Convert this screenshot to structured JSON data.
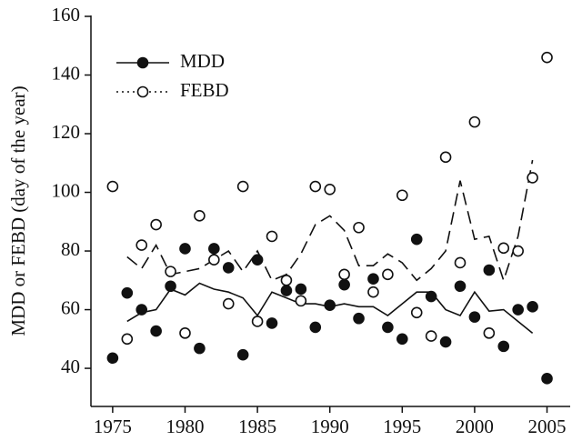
{
  "chart_data": {
    "type": "scatter",
    "ylabel": "MDD or FEBD (day of the year)",
    "x": [
      1975,
      1976,
      1977,
      1978,
      1979,
      1980,
      1981,
      1982,
      1983,
      1984,
      1985,
      1986,
      1987,
      1988,
      1989,
      1990,
      1991,
      1992,
      1993,
      1994,
      1995,
      1996,
      1997,
      1998,
      1999,
      2000,
      2001,
      2002,
      2003,
      2004,
      2005
    ],
    "series": [
      {
        "name": "MDD",
        "color": "#111111",
        "marker": "filled",
        "line_style": "solid",
        "legend_line_style": "solid",
        "values": [
          43.5,
          65.7,
          60,
          52.7,
          68,
          80.8,
          46.8,
          80.8,
          74.3,
          44.6,
          77,
          55.4,
          66.5,
          67,
          54,
          61.5,
          68.5,
          57,
          70.5,
          54,
          50,
          84,
          64.5,
          49,
          68,
          57.5,
          73.5,
          47.5,
          60,
          61,
          36.5
        ],
        "trend": [
          null,
          56,
          59,
          60,
          67,
          65,
          69,
          67,
          66,
          64,
          58,
          66,
          64,
          62,
          62,
          61,
          62,
          61,
          61,
          58,
          62,
          66,
          66,
          60,
          58,
          66,
          59.5,
          60,
          56,
          52,
          null
        ]
      },
      {
        "name": "FEBD",
        "color": "#111111",
        "marker": "open",
        "line_style": "dashed",
        "legend_line_style": "dotted",
        "values": [
          102,
          50,
          82,
          89,
          73,
          52,
          92,
          77,
          62,
          102,
          56,
          85,
          70,
          63,
          102,
          101,
          72,
          88,
          66,
          72,
          99,
          59,
          51,
          112,
          76,
          124,
          52,
          81,
          80,
          105,
          146
        ],
        "trend": [
          null,
          78,
          74,
          82,
          72,
          73,
          74,
          77,
          80,
          73,
          80,
          70,
          72,
          79,
          89,
          92,
          87,
          75,
          75,
          79,
          76,
          70,
          74,
          80,
          104,
          84,
          85,
          70,
          85,
          111,
          null
        ]
      }
    ],
    "xlim": [
      1973.5,
      2006.6
    ],
    "ylim": [
      27,
      160
    ],
    "xticks": [
      1975,
      1980,
      1985,
      1990,
      1995,
      2000,
      2005
    ],
    "yticks": [
      40,
      60,
      80,
      100,
      120,
      140,
      160
    ]
  }
}
